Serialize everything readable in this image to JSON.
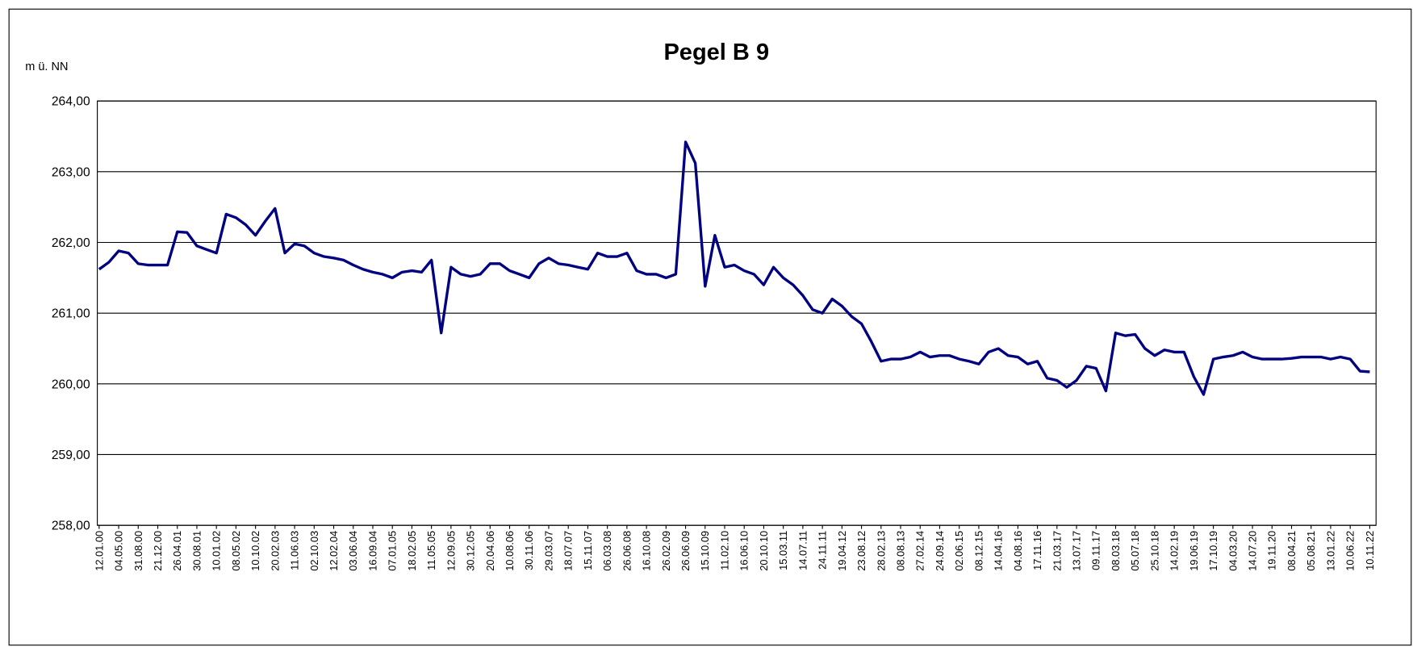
{
  "chart_data": {
    "type": "line",
    "title": "Pegel B 9",
    "y_label": "m ü. NN",
    "categories": [
      "12.01.00",
      null,
      "04.05.00",
      null,
      "31.08.00",
      null,
      "21.12.00",
      null,
      "26.04.01",
      null,
      "30.08.01",
      null,
      "10.01.02",
      null,
      "08.05.02",
      null,
      "10.10.02",
      null,
      "20.02.03",
      null,
      "11.06.03",
      null,
      "02.10.03",
      null,
      "12.02.04",
      null,
      "03.06.04",
      null,
      "16.09.04",
      null,
      "07.01.05",
      null,
      "18.02.05",
      null,
      "11.05.05",
      null,
      "12.09.05",
      null,
      "30.12.05",
      null,
      "20.04.06",
      null,
      "10.08.06",
      null,
      "30.11.06",
      null,
      "29.03.07",
      null,
      "18.07.07",
      null,
      "15.11.07",
      null,
      "06.03.08",
      null,
      "26.06.08",
      null,
      "16.10.08",
      null,
      "26.02.09",
      null,
      "26.06.09",
      null,
      "15.10.09",
      null,
      "11.02.10",
      null,
      "16.06.10",
      null,
      "20.10.10",
      null,
      "15.03.11",
      null,
      "14.07.11",
      null,
      "24.11.11",
      null,
      "19.04.12",
      null,
      "23.08.12",
      null,
      "28.02.13",
      null,
      "08.08.13",
      null,
      "27.02.14",
      null,
      "24.09.14",
      null,
      "02.06.15",
      null,
      "08.12.15",
      null,
      "14.04.16",
      null,
      "04.08.16",
      null,
      "17.11.16",
      null,
      "21.03.17",
      null,
      "13.07.17",
      null,
      "09.11.17",
      null,
      "08.03.18",
      null,
      "05.07.18",
      null,
      "25.10.18",
      null,
      "14.02.19",
      null,
      "19.06.19",
      null,
      "17.10.19",
      null,
      "04.03.20",
      null,
      "14.07.20",
      null,
      "19.11.20",
      null,
      "08.04.21",
      null,
      "05.08.21",
      null,
      "13.01.22",
      null,
      "10.06.22",
      null,
      "10.11.22"
    ],
    "series": [
      {
        "name": "Pegel B 9",
        "color": "#000080",
        "values": [
          261.62,
          261.72,
          261.88,
          261.85,
          261.7,
          261.68,
          261.68,
          261.68,
          262.15,
          262.14,
          261.95,
          261.9,
          261.85,
          262.4,
          262.35,
          262.25,
          262.1,
          262.3,
          262.48,
          261.85,
          261.98,
          261.95,
          261.85,
          261.8,
          261.78,
          261.75,
          261.68,
          261.62,
          261.58,
          261.55,
          261.5,
          261.58,
          261.6,
          261.58,
          261.75,
          260.72,
          261.65,
          261.55,
          261.52,
          261.55,
          261.7,
          261.7,
          261.6,
          261.55,
          261.5,
          261.7,
          261.78,
          261.7,
          261.68,
          261.65,
          261.62,
          261.85,
          261.8,
          261.8,
          261.85,
          261.6,
          261.55,
          261.55,
          261.5,
          261.55,
          263.42,
          263.12,
          261.38,
          262.1,
          261.65,
          261.68,
          261.6,
          261.55,
          261.4,
          261.65,
          261.5,
          261.4,
          261.25,
          261.05,
          261.0,
          261.2,
          261.1,
          260.95,
          260.85,
          260.6,
          260.32,
          260.35,
          260.35,
          260.38,
          260.45,
          260.38,
          260.4,
          260.4,
          260.35,
          260.32,
          260.28,
          260.45,
          260.5,
          260.4,
          260.38,
          260.28,
          260.32,
          260.08,
          260.05,
          259.95,
          260.05,
          260.25,
          260.22,
          259.9,
          260.72,
          260.68,
          260.7,
          260.5,
          260.4,
          260.48,
          260.45,
          260.45,
          260.1,
          259.85,
          260.35,
          260.38,
          260.4,
          260.45,
          260.38,
          260.35,
          260.35,
          260.35,
          260.36,
          260.38,
          260.38,
          260.38,
          260.35,
          260.38,
          260.35,
          260.18,
          260.17
        ]
      }
    ],
    "ylim": [
      258,
      264
    ],
    "yticks": [
      {
        "value": 258,
        "label": "258,00"
      },
      {
        "value": 259,
        "label": "259,00"
      },
      {
        "value": 260,
        "label": "260,00"
      },
      {
        "value": 261,
        "label": "261,00"
      },
      {
        "value": 262,
        "label": "262,00"
      },
      {
        "value": 263,
        "label": "263,00"
      },
      {
        "value": 264,
        "label": "264,00"
      }
    ],
    "grid": true
  }
}
